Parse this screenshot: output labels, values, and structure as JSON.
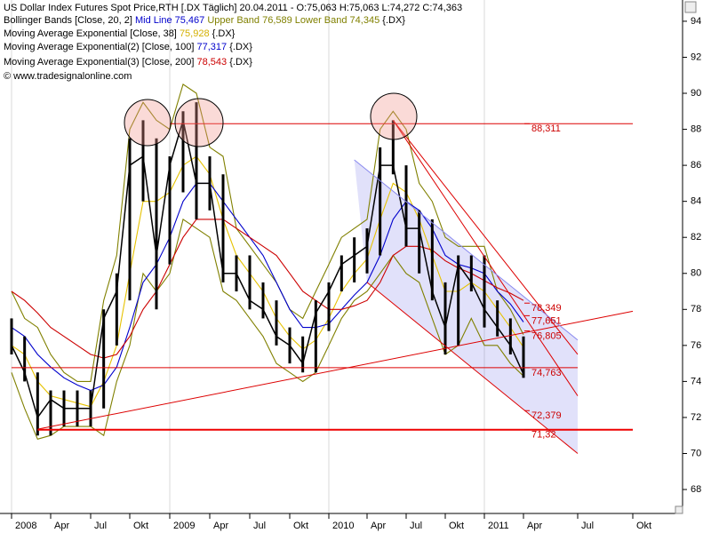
{
  "legend": {
    "price": "US Dollar Index Futures Spot Price,RTH [.DX  Täglich] 20.04.2011 - O:75,063 H:75,063 L:74,272 C:74,363",
    "bb_name": "Bollinger Bands [Close, 20, 2]",
    "bb_mid": "Mid Line 75,467",
    "bb_bands": "Upper Band 76,589 Lower Band 74,345",
    "bb_symbol": "{.DX}",
    "ema1_name": "Moving Average Exponential [Close, 38]",
    "ema1_value": "75,928",
    "ema1_symbol": "{.DX}",
    "ema2_name": "Moving Average Exponential(2) [Close, 100]",
    "ema2_value": "77,317",
    "ema2_symbol": "{.DX}",
    "ema3_name": "Moving Average Exponential(3) [Close, 200]",
    "ema3_value": "78,543",
    "ema3_symbol": "{.DX}",
    "copyright": "© www.tradesignalonline.com"
  },
  "chart_data": {
    "type": "ohlc",
    "x": [
      "2008-01",
      "2008-02",
      "2008-03",
      "2008-04",
      "2008-05",
      "2008-06",
      "2008-07",
      "2008-08",
      "2008-09",
      "2008-10",
      "2008-11",
      "2008-12",
      "2009-01",
      "2009-02",
      "2009-03",
      "2009-04",
      "2009-05",
      "2009-06",
      "2009-07",
      "2009-08",
      "2009-09",
      "2009-10",
      "2009-11",
      "2009-12",
      "2010-01",
      "2010-02",
      "2010-03",
      "2010-04",
      "2010-05",
      "2010-06",
      "2010-07",
      "2010-08",
      "2010-09",
      "2010-10",
      "2010-11",
      "2010-12",
      "2011-01",
      "2011-02",
      "2011-03",
      "2011-04"
    ],
    "series": [
      {
        "color": "#000000",
        "high": [
          77.5,
          76.5,
          74.5,
          73.5,
          73.5,
          73.5,
          73.5,
          78,
          80,
          87.5,
          88.5,
          87.5,
          86.5,
          89,
          89.5,
          86.5,
          85.5,
          81,
          81,
          79.5,
          78.5,
          77,
          76.5,
          78.5,
          79.5,
          81,
          82,
          82.5,
          87,
          88.5,
          86,
          83.5,
          83,
          79.5,
          81,
          81,
          81,
          78.5,
          77.5,
          76.5
        ],
        "low": [
          75.5,
          74,
          71,
          71,
          71.5,
          71.5,
          71.5,
          72.5,
          76,
          78.5,
          84,
          78,
          80.5,
          84.5,
          83,
          83.5,
          79.5,
          79,
          78,
          77.5,
          76,
          75,
          74.5,
          74.5,
          76.8,
          79,
          79.5,
          80,
          81,
          85.5,
          81.5,
          80,
          78.5,
          75.5,
          76,
          79,
          77,
          76.5,
          75.5,
          74.2
        ],
        "values": [
          76,
          74.5,
          72,
          73,
          72.5,
          72.5,
          72.5,
          77.5,
          79,
          86,
          86.5,
          81,
          86,
          88.5,
          85,
          85,
          80,
          80,
          78.5,
          78,
          76.5,
          76,
          75,
          77.8,
          79,
          80.5,
          81,
          81.5,
          86,
          86,
          82.5,
          82.5,
          79,
          77,
          80.5,
          79.5,
          78,
          77,
          76,
          74.4
        ]
      },
      {
        "color": "#808000",
        "values": [
          79,
          77.5,
          77,
          75.5,
          74.5,
          74,
          74,
          78.5,
          81,
          88,
          89.5,
          88.5,
          88,
          90.5,
          90,
          87,
          86.5,
          82.5,
          81.5,
          80.5,
          79.5,
          78,
          77.5,
          79,
          80.5,
          82,
          82.5,
          83,
          88,
          89,
          88,
          85,
          84,
          82,
          81.5,
          81.5,
          81.5,
          79,
          78,
          76.6
        ]
      },
      {
        "color": "#808000",
        "values": [
          74.5,
          72.5,
          70.8,
          71,
          71.5,
          71.5,
          71.5,
          71,
          74,
          76,
          80,
          79,
          80,
          83,
          82.5,
          82,
          79,
          78.5,
          77.5,
          76.5,
          75,
          74.5,
          74,
          74.5,
          76,
          77.5,
          78.5,
          79,
          80,
          81,
          80,
          79.5,
          77.5,
          75.5,
          76,
          77.5,
          76,
          76,
          75,
          74.3
        ]
      },
      {
        "color": "#e6c200",
        "values": [
          76,
          75.5,
          74,
          73.2,
          73,
          72.8,
          72.6,
          74,
          76,
          80,
          84,
          84,
          84.5,
          86,
          86.5,
          85.5,
          83,
          81,
          80,
          79,
          77.5,
          76.5,
          75.8,
          76.3,
          77.5,
          79,
          80,
          80.8,
          83,
          85,
          84.5,
          83,
          81,
          79,
          79,
          79.5,
          79,
          78,
          77,
          75.9
        ]
      },
      {
        "color": "#0000cc",
        "values": [
          77,
          76.5,
          75.5,
          74.8,
          74.2,
          73.8,
          73.5,
          73.8,
          74.8,
          77,
          79.5,
          80.5,
          82,
          84,
          85,
          85,
          84,
          83,
          82,
          81,
          79.5,
          78,
          77,
          77,
          77.2,
          78,
          78.8,
          79.5,
          81,
          83,
          84,
          83.5,
          82.5,
          81,
          80.5,
          80.3,
          80,
          79,
          78.3,
          77.3
        ]
      },
      {
        "color": "#cc0000",
        "values": [
          79,
          78.5,
          77.8,
          77,
          76.5,
          76,
          75.5,
          75.3,
          75.5,
          76.5,
          78,
          79,
          80.5,
          82,
          83,
          83,
          83,
          82.5,
          82,
          81.5,
          81,
          80,
          79,
          78.5,
          78,
          78,
          78.2,
          78.5,
          79.5,
          81,
          81.5,
          81.5,
          81.3,
          80.7,
          80.3,
          80,
          79.6,
          79.2,
          78.9,
          78.5
        ]
      }
    ],
    "trend_lines": [
      {
        "x": [
          "2009-01",
          "2011-10"
        ],
        "y": [
          88.311,
          88.311
        ],
        "color": "#dd0000"
      },
      {
        "x": [
          "2008-01",
          "2011-07"
        ],
        "y": [
          74.763,
          74.763
        ],
        "color": "#dd0000"
      },
      {
        "x": [
          "2008-03",
          "2011-10"
        ],
        "y": [
          71.32,
          71.32
        ],
        "color": "#ee0000"
      },
      {
        "x": [
          "2008-03",
          "2011-10"
        ],
        "y": [
          71.35,
          77.9
        ],
        "color": "#dd0000"
      },
      {
        "x": [
          "2010-06",
          "2011-07"
        ],
        "y": [
          88.5,
          75.5
        ],
        "color": "#dd0000"
      },
      {
        "x": [
          "2010-06",
          "2011-07"
        ],
        "y": [
          88.5,
          73.2
        ],
        "color": "#dd0000"
      },
      {
        "x": [
          "2010-03",
          "2011-07"
        ],
        "y": [
          86.3,
          76.3
        ],
        "color": "#8888ee"
      },
      {
        "x": [
          "2010-04",
          "2011-07"
        ],
        "y": [
          79.5,
          70
        ],
        "color": "#dd0000"
      }
    ],
    "channel": [
      6,
      7
    ],
    "levels": [
      {
        "value": 88.311,
        "label": "88,311"
      },
      {
        "value": 78.349,
        "label": "78,349"
      },
      {
        "value": 77.651,
        "label": "77,651"
      },
      {
        "value": 76.805,
        "label": "76,805"
      },
      {
        "value": 74.763,
        "label": "74,763"
      },
      {
        "value": 72.379,
        "label": "72,379"
      },
      {
        "value": 71.32,
        "label": "71,32"
      }
    ],
    "ylim": [
      66.67,
      95.18
    ],
    "yticks": [
      68,
      70,
      72,
      74,
      76,
      78,
      80,
      82,
      84,
      86,
      88,
      90,
      92,
      94
    ],
    "xticks": [
      {
        "value": "2008-01",
        "label": "2008"
      },
      {
        "value": "2008-04",
        "label": "Apr"
      },
      {
        "value": "2008-07",
        "label": "Jul"
      },
      {
        "value": "2008-10",
        "label": "Okt"
      },
      {
        "value": "2009-01",
        "label": "2009"
      },
      {
        "value": "2009-04",
        "label": "Apr"
      },
      {
        "value": "2009-07",
        "label": "Jul"
      },
      {
        "value": "2009-10",
        "label": "Okt"
      },
      {
        "value": "2010-01",
        "label": "2010"
      },
      {
        "value": "2010-04",
        "label": "Apr"
      },
      {
        "value": "2010-07",
        "label": "Jul"
      },
      {
        "value": "2010-10",
        "label": "Okt"
      },
      {
        "value": "2011-01",
        "label": "2011"
      },
      {
        "value": "2011-04",
        "label": "Apr"
      },
      {
        "value": "2011-07",
        "label": "Jul"
      },
      {
        "value": "2011-10",
        "label": "Okt"
      }
    ],
    "grid": true
  }
}
